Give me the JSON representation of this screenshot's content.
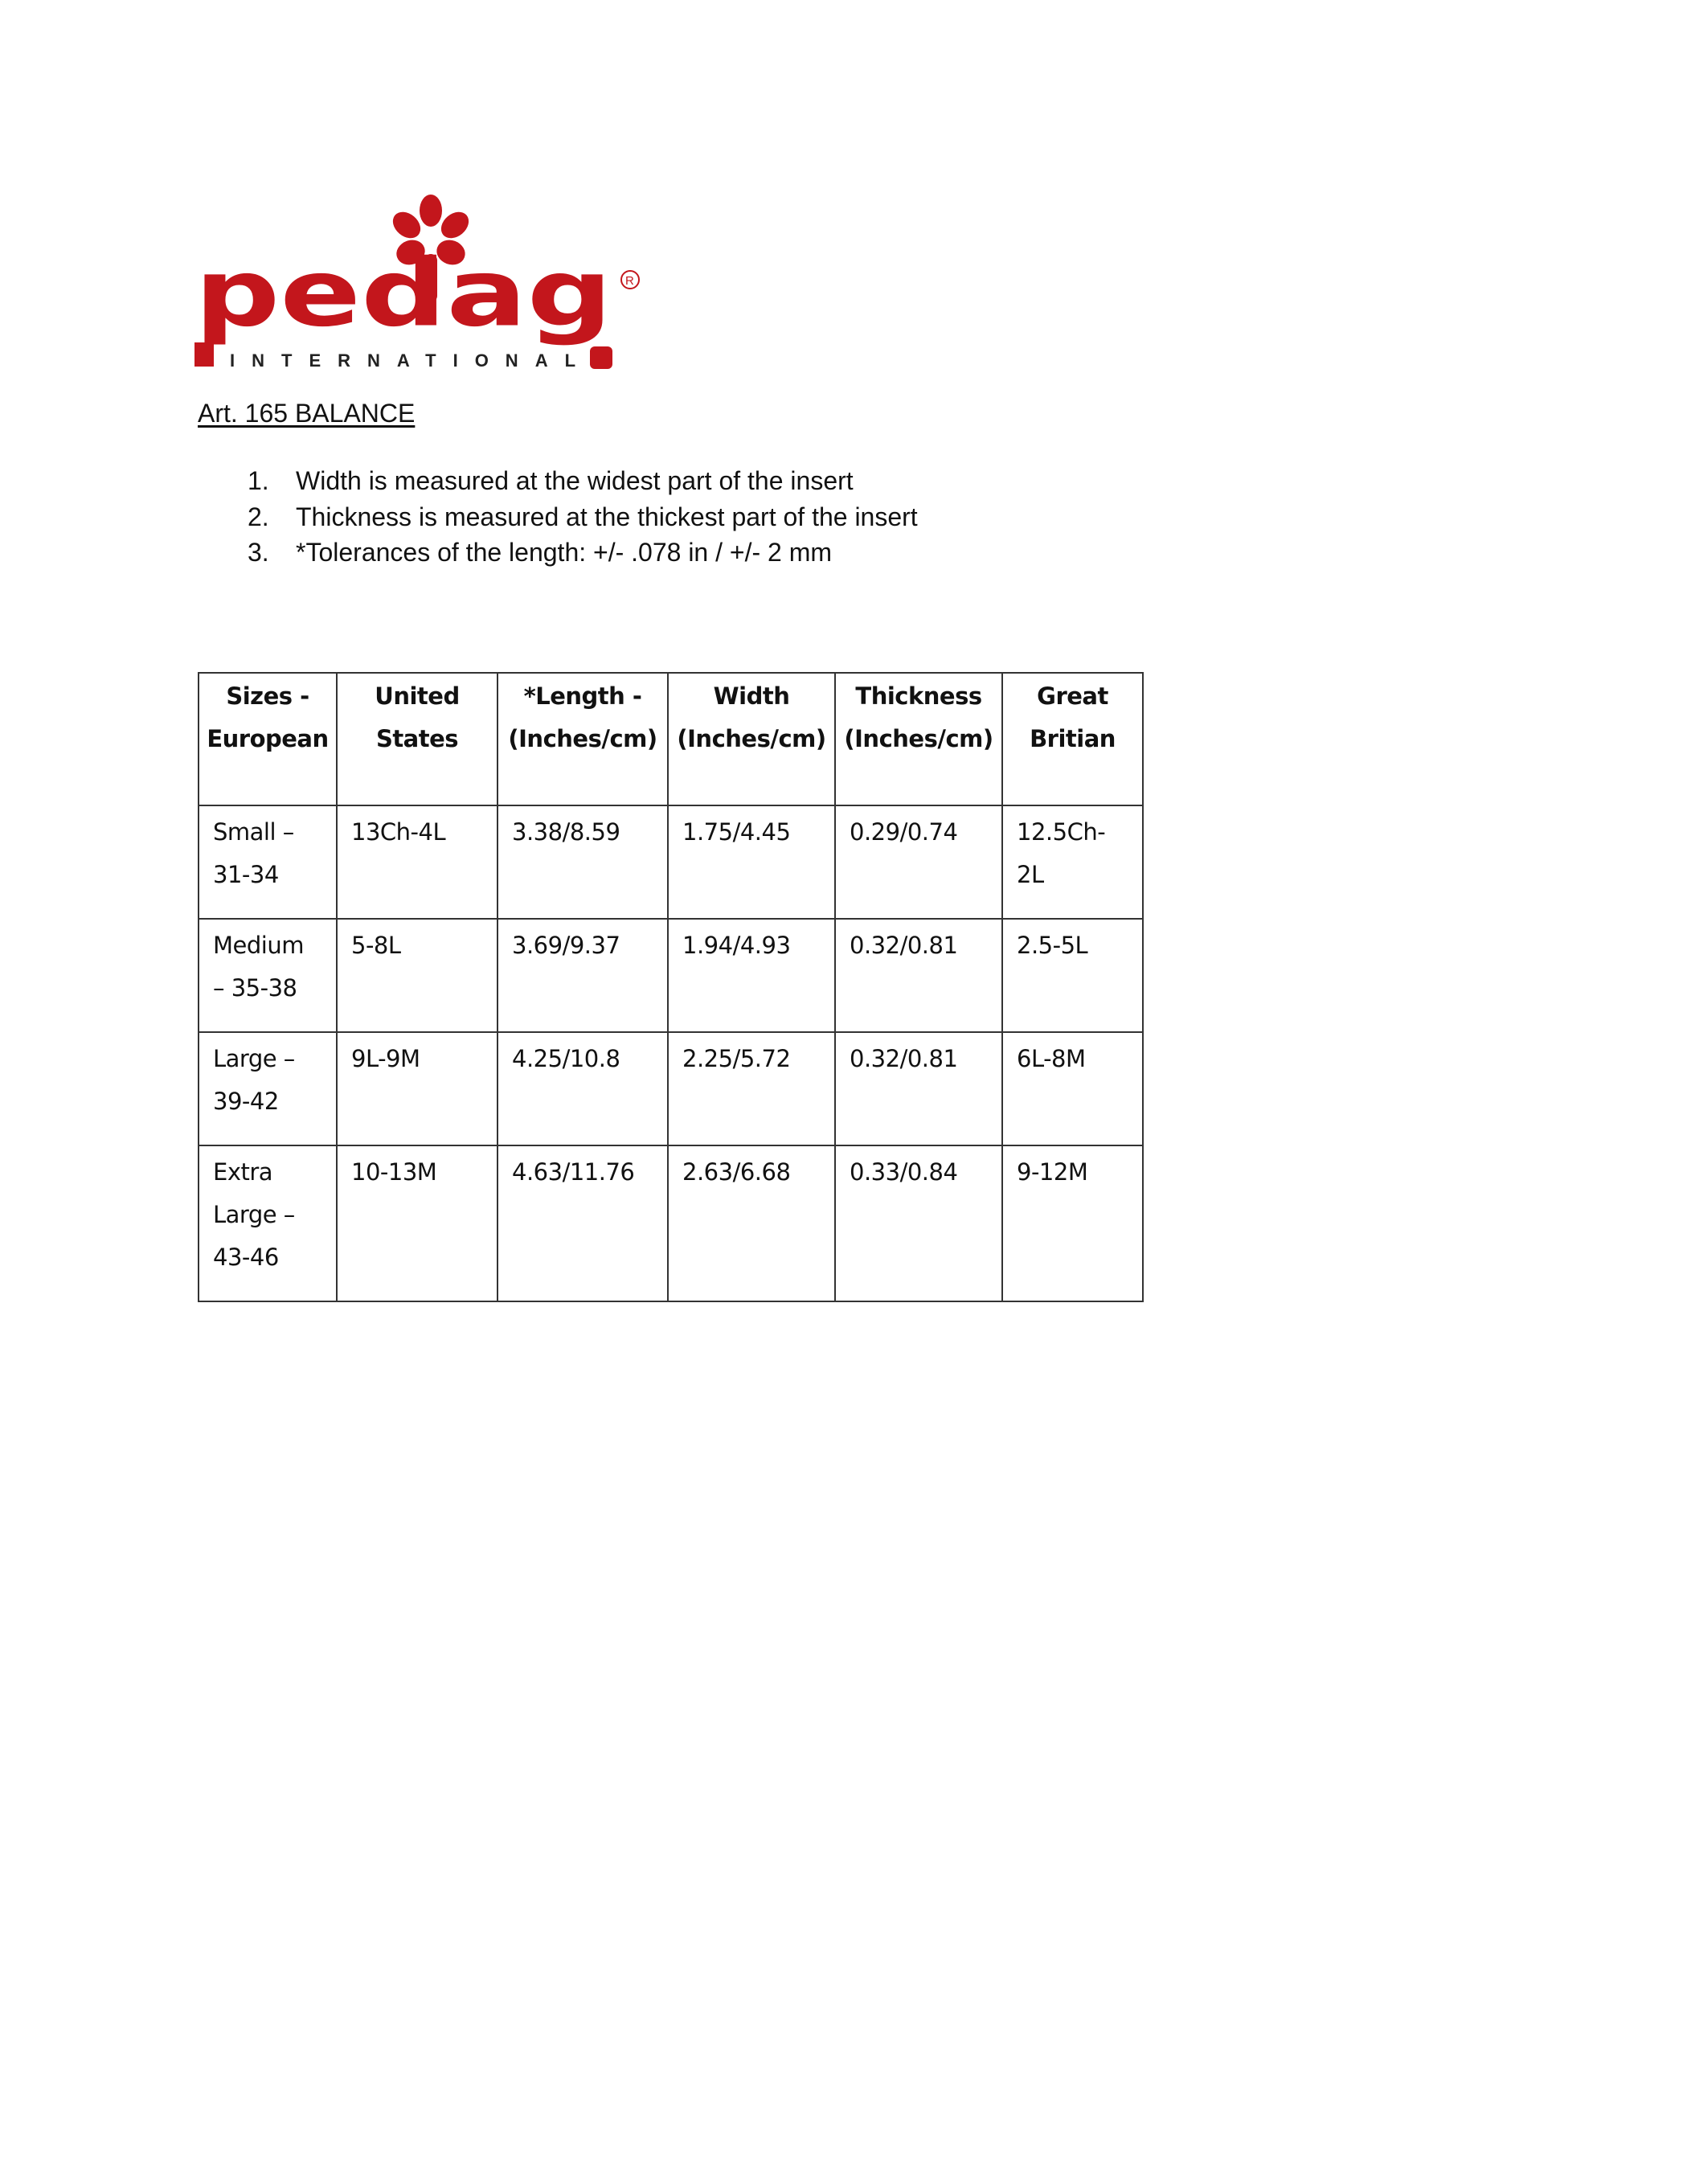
{
  "logo": {
    "wordmark": "pedag",
    "subtitle": "INTERNATIONAL",
    "registered": "®",
    "brand_color": "#c3161c"
  },
  "document": {
    "title": "Art. 165 BALANCE",
    "notes": [
      {
        "num": "1.",
        "text": "Width is measured at the widest part of the insert"
      },
      {
        "num": "2.",
        "text": "Thickness is measured at the thickest part of the insert"
      },
      {
        "num": "3.",
        "text": "*Tolerances of the length: +/- .078 in / +/- 2 mm"
      }
    ]
  },
  "table": {
    "headers": [
      [
        "Sizes -",
        "European"
      ],
      [
        "United",
        "States"
      ],
      [
        "*Length -",
        "(Inches/cm)"
      ],
      [
        "Width",
        "(Inches/cm)"
      ],
      [
        "Thickness",
        "(Inches/cm)"
      ],
      [
        "Great",
        "Britian"
      ]
    ],
    "rows": [
      [
        [
          "Small –",
          "31-34"
        ],
        "13Ch-4L",
        "3.38/8.59",
        "1.75/4.45",
        "0.29/0.74",
        "12.5Ch-2L"
      ],
      [
        [
          "Medium",
          "– 35-38"
        ],
        "5-8L",
        "3.69/9.37",
        "1.94/4.93",
        "0.32/0.81",
        "2.5-5L"
      ],
      [
        [
          "Large –",
          "39-42"
        ],
        "9L-9M",
        "4.25/10.8",
        "2.25/5.72",
        "0.32/0.81",
        "6L-8M"
      ],
      [
        [
          "Extra",
          "Large –",
          "43-46"
        ],
        "10-13M",
        "4.63/11.76",
        "2.63/6.68",
        "0.33/0.84",
        "9-12M"
      ]
    ]
  }
}
